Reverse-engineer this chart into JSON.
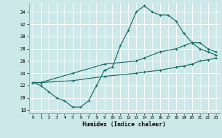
{
  "xlabel": "Humidex (Indice chaleur)",
  "bg_color": "#cce8e8",
  "grid_color": "#ffffff",
  "line_color": "#1a6e6a",
  "xlim": [
    -0.5,
    23.5
  ],
  "ylim": [
    17.5,
    35.5
  ],
  "xticks": [
    0,
    1,
    2,
    3,
    4,
    5,
    6,
    7,
    8,
    9,
    10,
    11,
    12,
    13,
    14,
    15,
    16,
    17,
    18,
    19,
    20,
    21,
    22,
    23
  ],
  "yticks": [
    18,
    20,
    22,
    24,
    26,
    28,
    30,
    32,
    34
  ],
  "curve1_x": [
    0,
    1,
    2,
    3,
    4,
    5,
    6,
    7,
    8,
    9,
    10,
    11,
    12,
    13,
    14,
    15,
    16,
    17,
    18,
    19,
    20,
    21,
    22,
    23
  ],
  "curve1_y": [
    22.5,
    22.0,
    21.0,
    20.0,
    19.5,
    18.5,
    18.5,
    19.5,
    22.0,
    24.5,
    25.0,
    28.5,
    31.0,
    34.0,
    35.0,
    34.0,
    33.5,
    33.5,
    32.5,
    30.5,
    29.0,
    28.0,
    27.5,
    27.0
  ],
  "curve2_x": [
    0,
    1,
    5,
    9,
    13,
    14,
    16,
    18,
    19,
    20,
    21,
    22,
    23
  ],
  "curve2_y": [
    22.5,
    22.5,
    24.0,
    25.5,
    26.0,
    26.5,
    27.5,
    28.0,
    28.5,
    29.0,
    29.0,
    28.0,
    27.5
  ],
  "curve3_x": [
    0,
    1,
    5,
    9,
    13,
    14,
    16,
    18,
    19,
    20,
    21,
    22,
    23
  ],
  "curve3_y": [
    22.5,
    22.5,
    22.8,
    23.5,
    24.0,
    24.2,
    24.5,
    25.0,
    25.2,
    25.5,
    26.0,
    26.2,
    26.5
  ]
}
